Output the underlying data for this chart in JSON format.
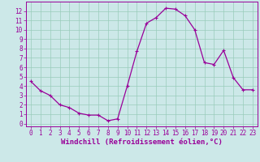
{
  "x": [
    0,
    1,
    2,
    3,
    4,
    5,
    6,
    7,
    8,
    9,
    10,
    11,
    12,
    13,
    14,
    15,
    16,
    17,
    18,
    19,
    20,
    21,
    22,
    23
  ],
  "y": [
    4.5,
    3.5,
    3.0,
    2.0,
    1.7,
    1.1,
    0.9,
    0.9,
    0.3,
    0.5,
    4.0,
    7.7,
    10.7,
    11.3,
    12.3,
    12.2,
    11.5,
    10.0,
    6.5,
    6.3,
    7.8,
    4.9,
    3.6,
    3.6
  ],
  "line_color": "#990099",
  "marker": "+",
  "marker_size": 3,
  "marker_lw": 0.8,
  "line_width": 0.9,
  "bg_color": "#cce8e8",
  "grid_color": "#99ccbb",
  "xlabel": "Windchill (Refroidissement éolien,°C)",
  "xlabel_color": "#990099",
  "tick_color": "#990099",
  "spine_color": "#990099",
  "xlim": [
    -0.5,
    23.5
  ],
  "ylim": [
    -0.3,
    13.0
  ],
  "xticks": [
    0,
    1,
    2,
    3,
    4,
    5,
    6,
    7,
    8,
    9,
    10,
    11,
    12,
    13,
    14,
    15,
    16,
    17,
    18,
    19,
    20,
    21,
    22,
    23
  ],
  "yticks": [
    0,
    1,
    2,
    3,
    4,
    5,
    6,
    7,
    8,
    9,
    10,
    11,
    12
  ],
  "tick_fontsize": 5.5,
  "xlabel_fontsize": 6.5
}
